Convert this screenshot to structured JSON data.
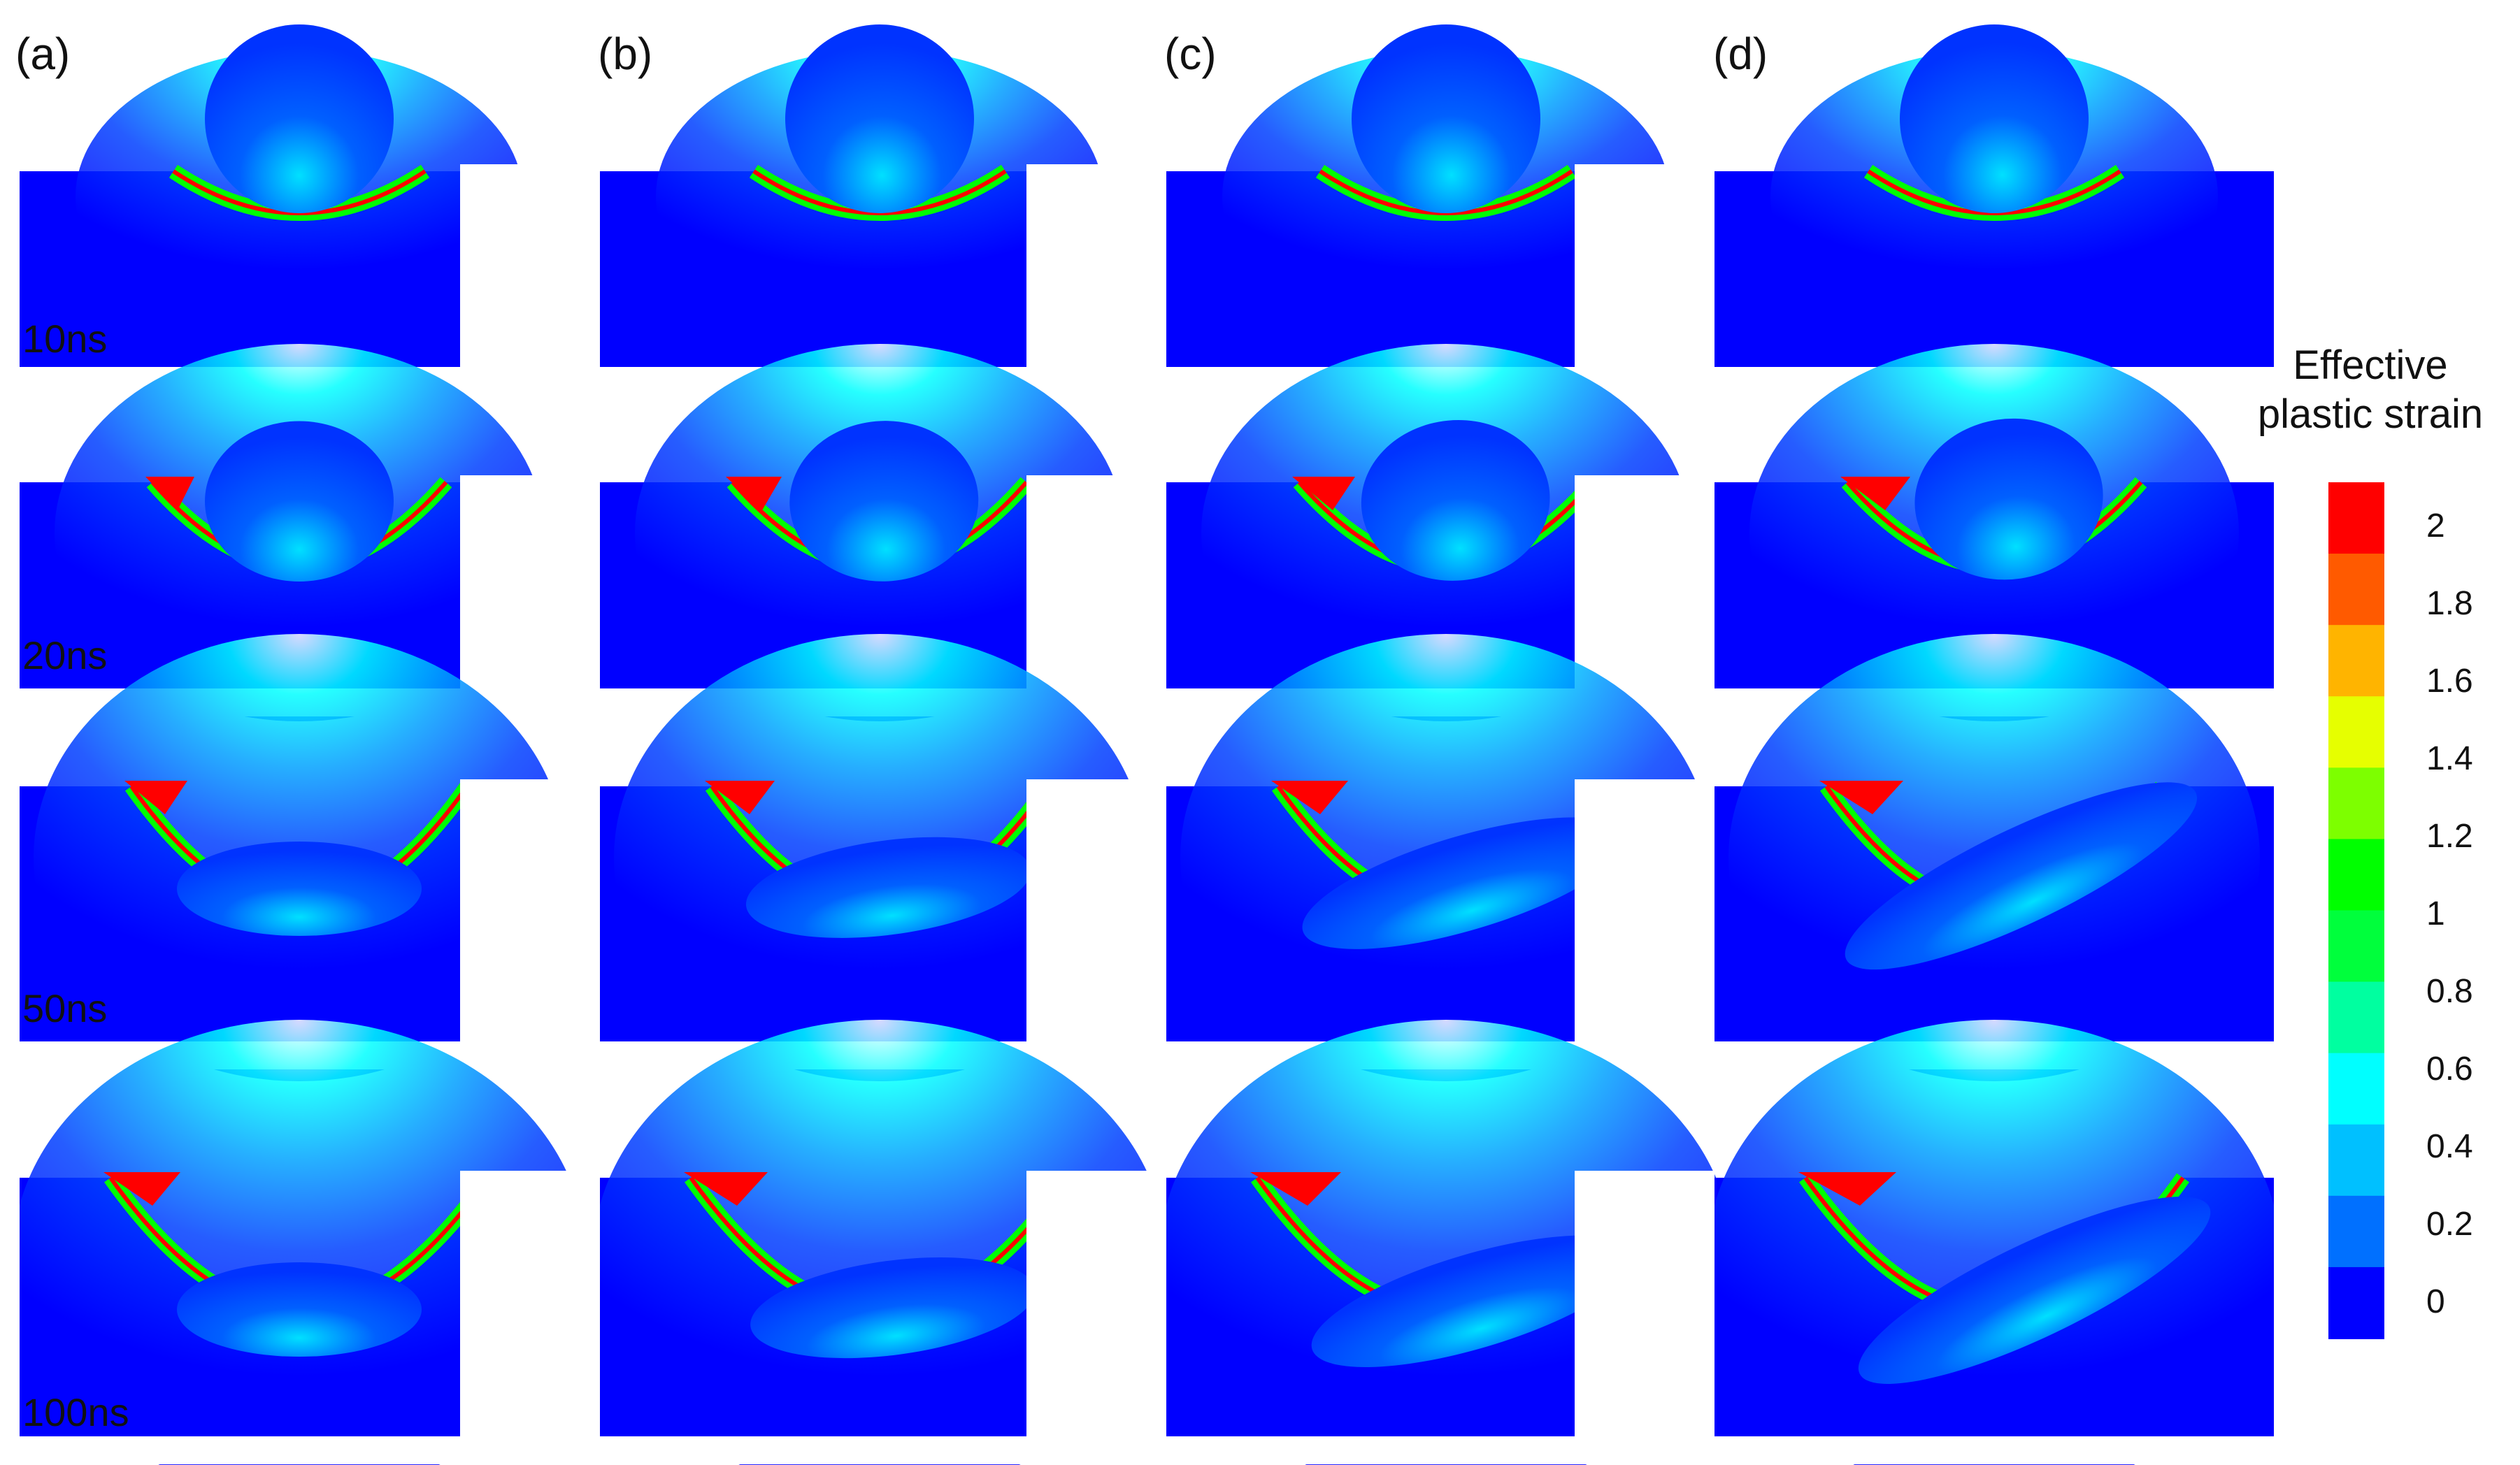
{
  "columns": [
    "(a)",
    "(b)",
    "(c)",
    "(d)"
  ],
  "times": [
    "10ns",
    "20ns",
    "50ns",
    "100ns"
  ],
  "legend": {
    "title_line1": "Effective",
    "title_line2": "plastic strain",
    "ticks": [
      "2",
      "1.8",
      "1.6",
      "1.4",
      "1.2",
      "1",
      "0.8",
      "0.6",
      "0.4",
      "0.2",
      "0"
    ],
    "colors": [
      "#ff0000",
      "#ff5a00",
      "#ffb400",
      "#e6ff00",
      "#7dff00",
      "#00ff00",
      "#00ff3c",
      "#00ffa0",
      "#00ffff",
      "#00c0ff",
      "#0070ff",
      "#0000ff"
    ]
  },
  "colors": {
    "substrate": "#0000ff",
    "particle": "#0033ff",
    "high_strain": "#ff0000",
    "mid_strain": "#00ff00",
    "low_strain": "#00ffff"
  }
}
